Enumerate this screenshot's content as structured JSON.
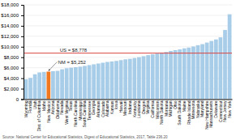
{
  "chart_data": {
    "type": "bar",
    "categories": [
      "Wyoming",
      "Florida",
      "Utah",
      "Dist. of Columbia",
      "Idaho",
      "New Mexico",
      "Arizona",
      "Oklahoma",
      "Nevada",
      "West Virginia",
      "Texas",
      "North Carolina",
      "Mississippi",
      "South Carolina",
      "Tennessee",
      "Georgia",
      "Arkansas",
      "Colorado",
      "Alabama",
      "Kansas",
      "Iowa",
      "Hawaii",
      "Missouri",
      "Indiana",
      "Kentucky",
      "Louisiana",
      "Oregon",
      "Virginia",
      "California",
      "Wisconsin",
      "North Dakota",
      "Montana",
      "Michigan",
      "Ohio",
      "South Dakota",
      "Maine",
      "Rhode Island",
      "Minnesota",
      "Nebraska",
      "Maryland",
      "New Hampshire",
      "Massachusetts",
      "Delaware",
      "Connecticut",
      "New Jersey",
      "New York"
    ],
    "values": [
      3800,
      4050,
      4750,
      5100,
      5200,
      5252,
      5350,
      5400,
      5700,
      5900,
      6000,
      6100,
      6200,
      6350,
      6500,
      6650,
      6800,
      6950,
      7100,
      7200,
      7300,
      7450,
      7600,
      7700,
      7850,
      8000,
      8200,
      8400,
      8550,
      8700,
      8850,
      9000,
      9200,
      9350,
      9500,
      9700,
      9850,
      10050,
      10300,
      10500,
      10800,
      11100,
      11400,
      11800,
      13200,
      16200
    ],
    "colors": [
      "#a8cde8",
      "#a8cde8",
      "#a8cde8",
      "#a8cde8",
      "#a8cde8",
      "#f07820",
      "#a8cde8",
      "#a8cde8",
      "#a8cde8",
      "#a8cde8",
      "#a8cde8",
      "#a8cde8",
      "#a8cde8",
      "#a8cde8",
      "#a8cde8",
      "#a8cde8",
      "#a8cde8",
      "#a8cde8",
      "#a8cde8",
      "#a8cde8",
      "#a8cde8",
      "#a8cde8",
      "#a8cde8",
      "#a8cde8",
      "#a8cde8",
      "#a8cde8",
      "#a8cde8",
      "#a8cde8",
      "#a8cde8",
      "#a8cde8",
      "#a8cde8",
      "#a8cde8",
      "#a8cde8",
      "#a8cde8",
      "#a8cde8",
      "#a8cde8",
      "#a8cde8",
      "#a8cde8",
      "#a8cde8",
      "#a8cde8",
      "#a8cde8",
      "#a8cde8",
      "#a8cde8",
      "#a8cde8",
      "#a8cde8",
      "#a8cde8"
    ],
    "ylim": [
      0,
      18000
    ],
    "yticks": [
      0,
      {
        "value": 2000,
        "label": "$2,000"
      },
      {
        "value": 4000,
        "label": "$4,000"
      },
      {
        "value": 6000,
        "label": "$6,000"
      },
      {
        "value": 8000,
        "label": "$8,000"
      },
      {
        "value": 10000,
        "label": "$10,000"
      },
      {
        "value": 12000,
        "label": "$12,000"
      },
      {
        "value": 14000,
        "label": "$14,000"
      },
      {
        "value": 16000,
        "label": "$16,000"
      },
      {
        "value": 18000,
        "label": "$18,000"
      }
    ],
    "grid": true,
    "annotations": [
      {
        "text": "US = $8,778",
        "value": 8778,
        "color": "#d94040"
      },
      {
        "text": "NM = $5,252",
        "value": 5252,
        "category": "New Mexico"
      }
    ],
    "source": "Source: National Center for Educational Statistics, Digest of Educational Statistics, 2017, Table 236.20"
  }
}
